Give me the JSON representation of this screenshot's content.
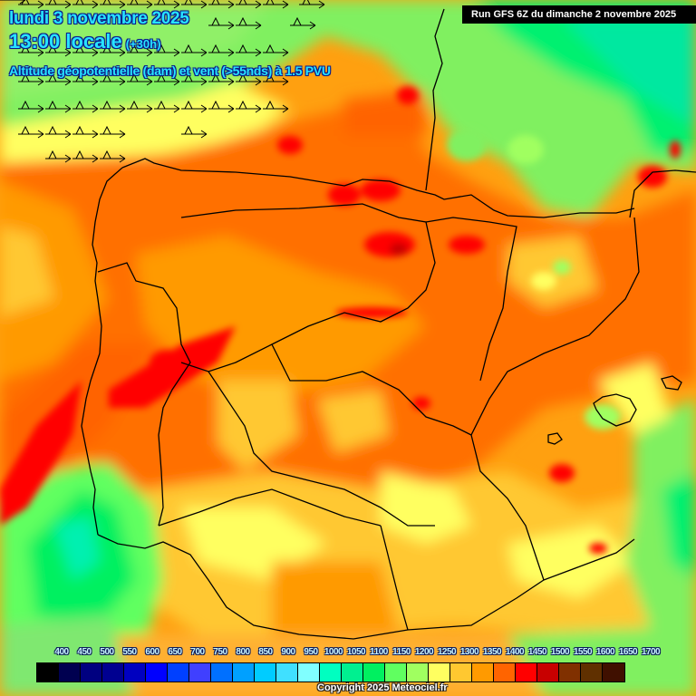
{
  "header": {
    "date": "lundi 3 novembre 2025",
    "time": "13:00 locale",
    "lead": "(+30h)",
    "variable": "Altitude géopotentielle (dam) et vent (>55nds) à 1.5 PVU",
    "run": "Run GFS 6Z du dimanche 2 novembre 2025"
  },
  "colorbar": {
    "labels": [
      "400",
      "450",
      "500",
      "550",
      "600",
      "650",
      "700",
      "750",
      "800",
      "850",
      "900",
      "950",
      "1000",
      "1050",
      "1100",
      "1150",
      "1200",
      "1250",
      "1300",
      "1350",
      "1400",
      "1450",
      "1500",
      "1550",
      "1600",
      "1650",
      "1700"
    ],
    "colors": [
      "#000000",
      "#000050",
      "#000080",
      "#000090",
      "#0000c0",
      "#0000ff",
      "#0040ff",
      "#4040ff",
      "#0070ff",
      "#00a0ff",
      "#00ccff",
      "#40e0ff",
      "#80ffff",
      "#00ffc0",
      "#00f090",
      "#00f060",
      "#60ff60",
      "#a0ff60",
      "#ffff60",
      "#ffc830",
      "#ff9a00",
      "#ff6400",
      "#ff0000",
      "#c80000",
      "#803000",
      "#603000",
      "#401000"
    ]
  },
  "footer": {
    "copyright": "Copyright 2025 Meteociel.fr"
  },
  "map": {
    "region": "Péninsule Ibérique",
    "wind_barbs_rows_y": [
      5,
      28,
      56,
      92,
      120,
      150,
      175
    ]
  }
}
